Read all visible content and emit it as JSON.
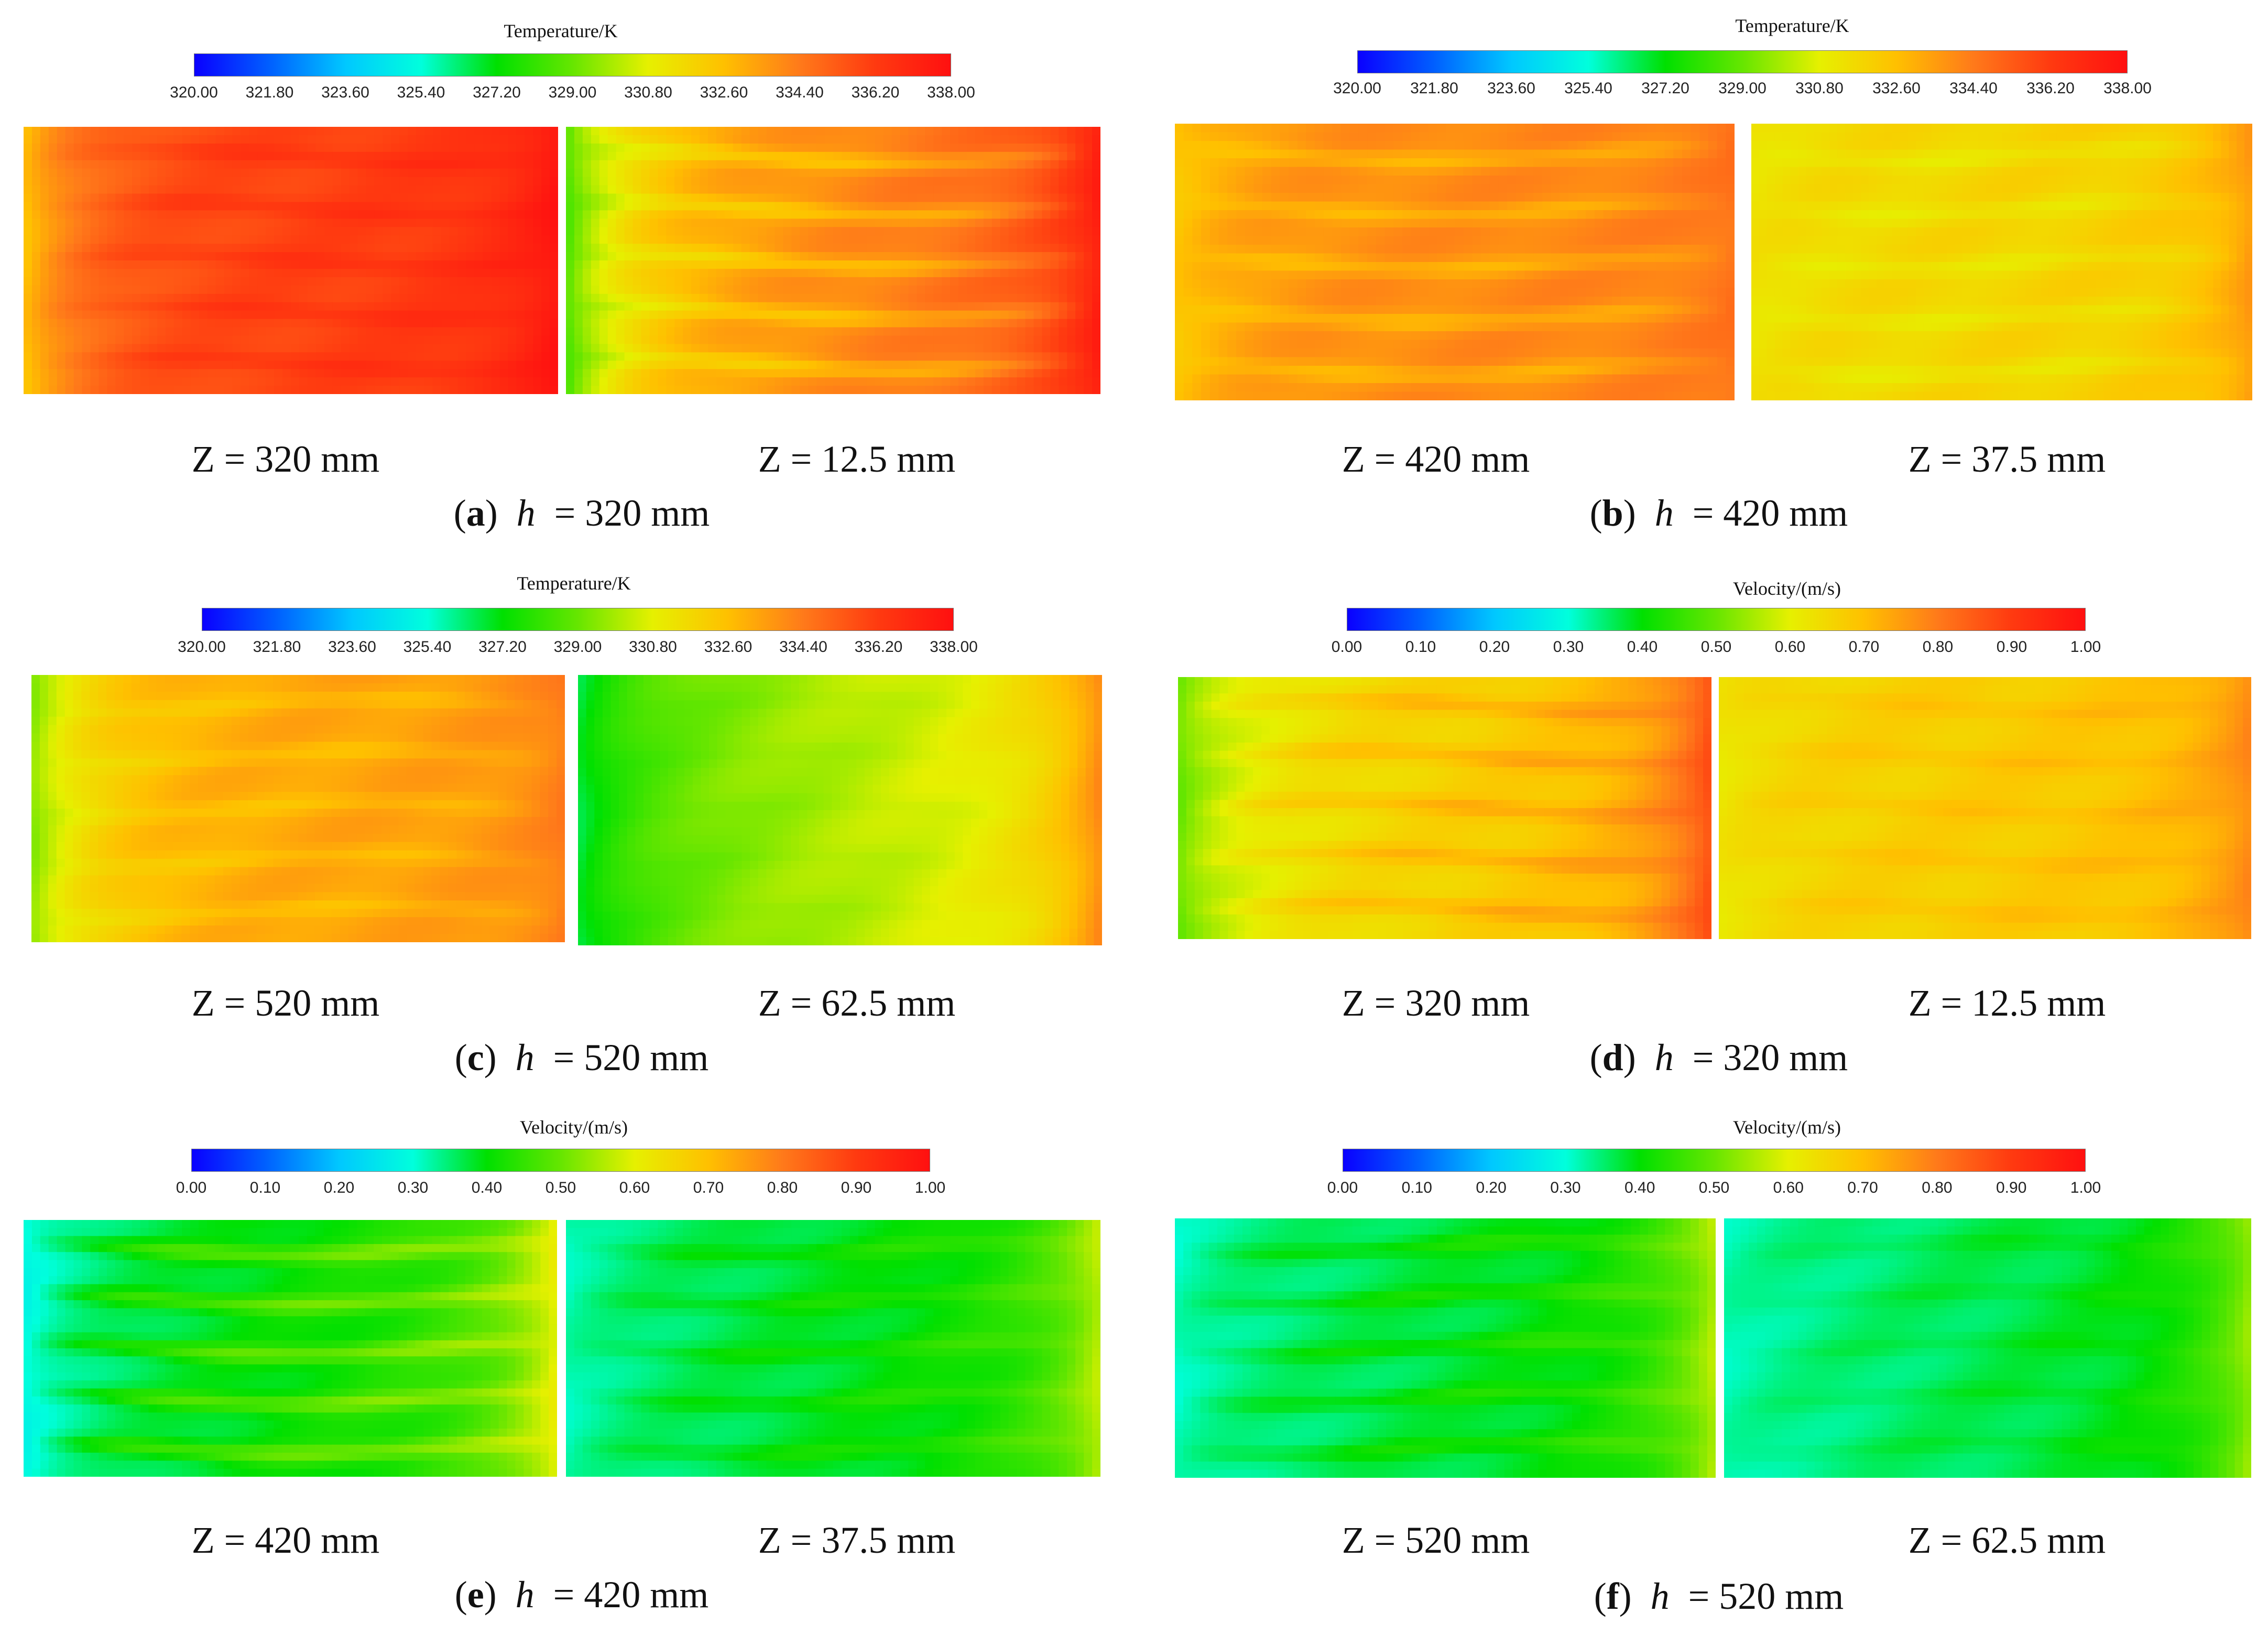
{
  "colorbars": {
    "temperature": {
      "title": "Temperature/K",
      "ticks": [
        "320.00",
        "321.80",
        "323.60",
        "325.40",
        "327.20",
        "329.00",
        "330.80",
        "332.60",
        "334.40",
        "336.20",
        "338.00"
      ]
    },
    "velocity": {
      "title": "Velocity/(m/s)",
      "ticks": [
        "0.00",
        "0.10",
        "0.20",
        "0.30",
        "0.40",
        "0.50",
        "0.60",
        "0.70",
        "0.80",
        "0.90",
        "1.00"
      ]
    }
  },
  "colormap": [
    "#0a00ff",
    "#0060ff",
    "#00c8ff",
    "#00ffdc",
    "#00e000",
    "#66e600",
    "#e6f000",
    "#ffc000",
    "#ff7a1a",
    "#ff3a10",
    "#ff1010"
  ],
  "panels": [
    {
      "id": "a",
      "letter": "a",
      "h_label": "h",
      "h_value": "= 320 mm",
      "colorbar": "temperature",
      "colorbar_type": "temperature",
      "left_label": "Z = 320 mm",
      "right_label": "Z = 12.5 mm",
      "left_field": {
        "base": 0.885,
        "streaks": 0.92,
        "edge_left": 0.72,
        "edge_right": 0.97,
        "gradient": 0.03
      },
      "right_field": {
        "base": 0.78,
        "streaks": 0.7,
        "edge_left": 0.55,
        "edge_right": 0.9,
        "gradient": 0.12
      }
    },
    {
      "id": "b",
      "letter": "b",
      "h_label": "h",
      "h_value": "= 420 mm",
      "colorbar": "temperature",
      "colorbar_type": "temperature",
      "left_label": "Z = 420 mm",
      "right_label": "Z = 37.5 mm",
      "left_field": {
        "base": 0.78,
        "streaks": 0.72,
        "edge_left": 0.7,
        "edge_right": 0.8,
        "gradient": 0.02
      },
      "right_field": {
        "base": 0.66,
        "streaks": 0.62,
        "edge_left": 0.64,
        "edge_right": 0.74,
        "gradient": 0.02
      }
    },
    {
      "id": "c",
      "letter": "c",
      "h_label": "h",
      "h_value": "= 520 mm",
      "colorbar": "temperature",
      "colorbar_type": "temperature",
      "left_label": "Z = 520 mm",
      "right_label": "Z = 62.5 mm",
      "left_field": {
        "base": 0.74,
        "streaks": 0.7,
        "edge_left": 0.55,
        "edge_right": 0.78,
        "gradient": 0.03
      },
      "right_field": {
        "base": 0.56,
        "streaks": 0.55,
        "edge_left": 0.45,
        "edge_right": 0.7,
        "gradient": 0.14
      }
    },
    {
      "id": "d",
      "letter": "d",
      "h_label": "h",
      "h_value": "= 320 mm",
      "colorbar": "velocity",
      "colorbar_type": "velocity",
      "left_label": "Z = 320 mm",
      "right_label": "Z = 12.5 mm",
      "left_field": {
        "base": 0.66,
        "streaks": 0.72,
        "edge_left": 0.55,
        "edge_right": 0.82,
        "gradient": 0.08
      },
      "right_field": {
        "base": 0.67,
        "streaks": 0.7,
        "edge_left": 0.64,
        "edge_right": 0.76,
        "gradient": 0.03
      }
    },
    {
      "id": "e",
      "letter": "e",
      "h_label": "h",
      "h_value": "= 420 mm",
      "colorbar": "velocity",
      "colorbar_type": "velocity",
      "left_label": "Z = 420 mm",
      "right_label": "Z = 37.5 mm",
      "left_field": {
        "base": 0.4,
        "streaks": 0.5,
        "edge_left": 0.34,
        "edge_right": 0.55,
        "gradient": 0.1
      },
      "right_field": {
        "base": 0.38,
        "streaks": 0.42,
        "edge_left": 0.36,
        "edge_right": 0.52,
        "gradient": 0.08
      }
    },
    {
      "id": "f",
      "letter": "f",
      "h_label": "h",
      "h_value": "= 520 mm",
      "colorbar": "velocity",
      "colorbar_type": "velocity",
      "left_label": "Z = 520 mm",
      "right_label": "Z = 62.5 mm",
      "left_field": {
        "base": 0.37,
        "streaks": 0.42,
        "edge_left": 0.35,
        "edge_right": 0.52,
        "gradient": 0.07
      },
      "right_field": {
        "base": 0.36,
        "streaks": 0.38,
        "edge_left": 0.35,
        "edge_right": 0.5,
        "gradient": 0.06
      }
    }
  ]
}
